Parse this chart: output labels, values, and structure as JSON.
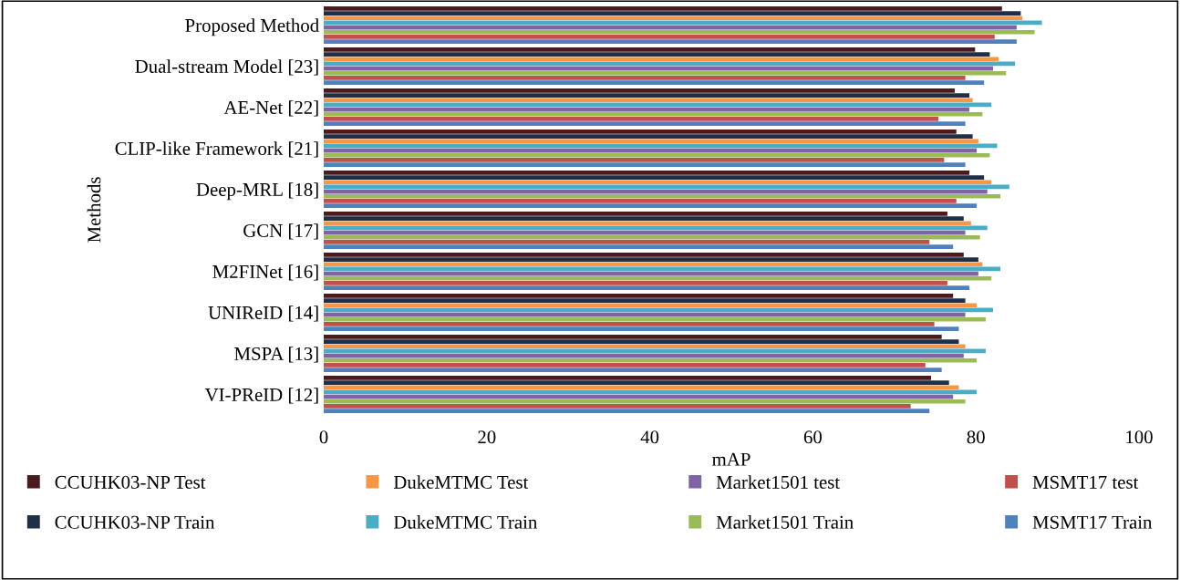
{
  "chart_data": {
    "type": "bar",
    "orientation": "horizontal",
    "xlabel": "mAP",
    "ylabel": "Methods",
    "categories": [
      "Proposed Method",
      "Dual-stream Model [23]",
      "AE-Net [22]",
      "CLIP-like Framework [21]",
      "Deep-MRL [18]",
      "GCN [17]",
      "M2FINet [16]",
      "UNIReID [14]",
      "MSPA [13]",
      "VI-PReID [12]"
    ],
    "series": [
      {
        "name": "CCUHK03-NP Test",
        "color": "#4a1a1c",
        "values": [
          83.2,
          79.9,
          77.4,
          77.6,
          79.2,
          76.5,
          78.5,
          77.2,
          75.8,
          74.5
        ]
      },
      {
        "name": "CCUHK03-NP Train",
        "color": "#1f2f47",
        "values": [
          85.5,
          81.7,
          79.2,
          79.6,
          81.0,
          78.5,
          80.3,
          78.7,
          77.9,
          76.7
        ]
      },
      {
        "name": "DukeMTMC Test",
        "color": "#f79646",
        "values": [
          85.7,
          82.8,
          79.6,
          80.3,
          81.9,
          79.4,
          80.8,
          80.1,
          78.7,
          77.9
        ]
      },
      {
        "name": "DukeMTMC Train",
        "color": "#4bacc6",
        "values": [
          88.1,
          84.8,
          81.9,
          82.6,
          84.1,
          81.4,
          83.0,
          82.1,
          81.2,
          80.1
        ]
      },
      {
        "name": "Market1501 test",
        "color": "#8064a2",
        "values": [
          85.0,
          82.1,
          79.2,
          80.1,
          81.4,
          78.7,
          80.3,
          78.7,
          78.5,
          77.2
        ]
      },
      {
        "name": "Market1501 Train",
        "color": "#9bbb59",
        "values": [
          87.2,
          83.7,
          80.8,
          81.7,
          83.0,
          80.5,
          81.9,
          81.2,
          80.1,
          78.7
        ]
      },
      {
        "name": "MSMT17 test",
        "color": "#c0504d",
        "values": [
          82.3,
          78.7,
          75.4,
          76.1,
          77.6,
          74.3,
          76.5,
          74.9,
          73.8,
          72.0
        ]
      },
      {
        "name": "MSMT17 Train",
        "color": "#4f81bd",
        "values": [
          85.0,
          81.0,
          78.7,
          78.7,
          80.1,
          77.2,
          79.2,
          77.9,
          75.8,
          74.3
        ]
      }
    ],
    "xlim": [
      0,
      100
    ],
    "xticks": [
      0,
      20,
      40,
      60,
      80,
      100
    ],
    "grid": false,
    "legend": "bottom"
  }
}
